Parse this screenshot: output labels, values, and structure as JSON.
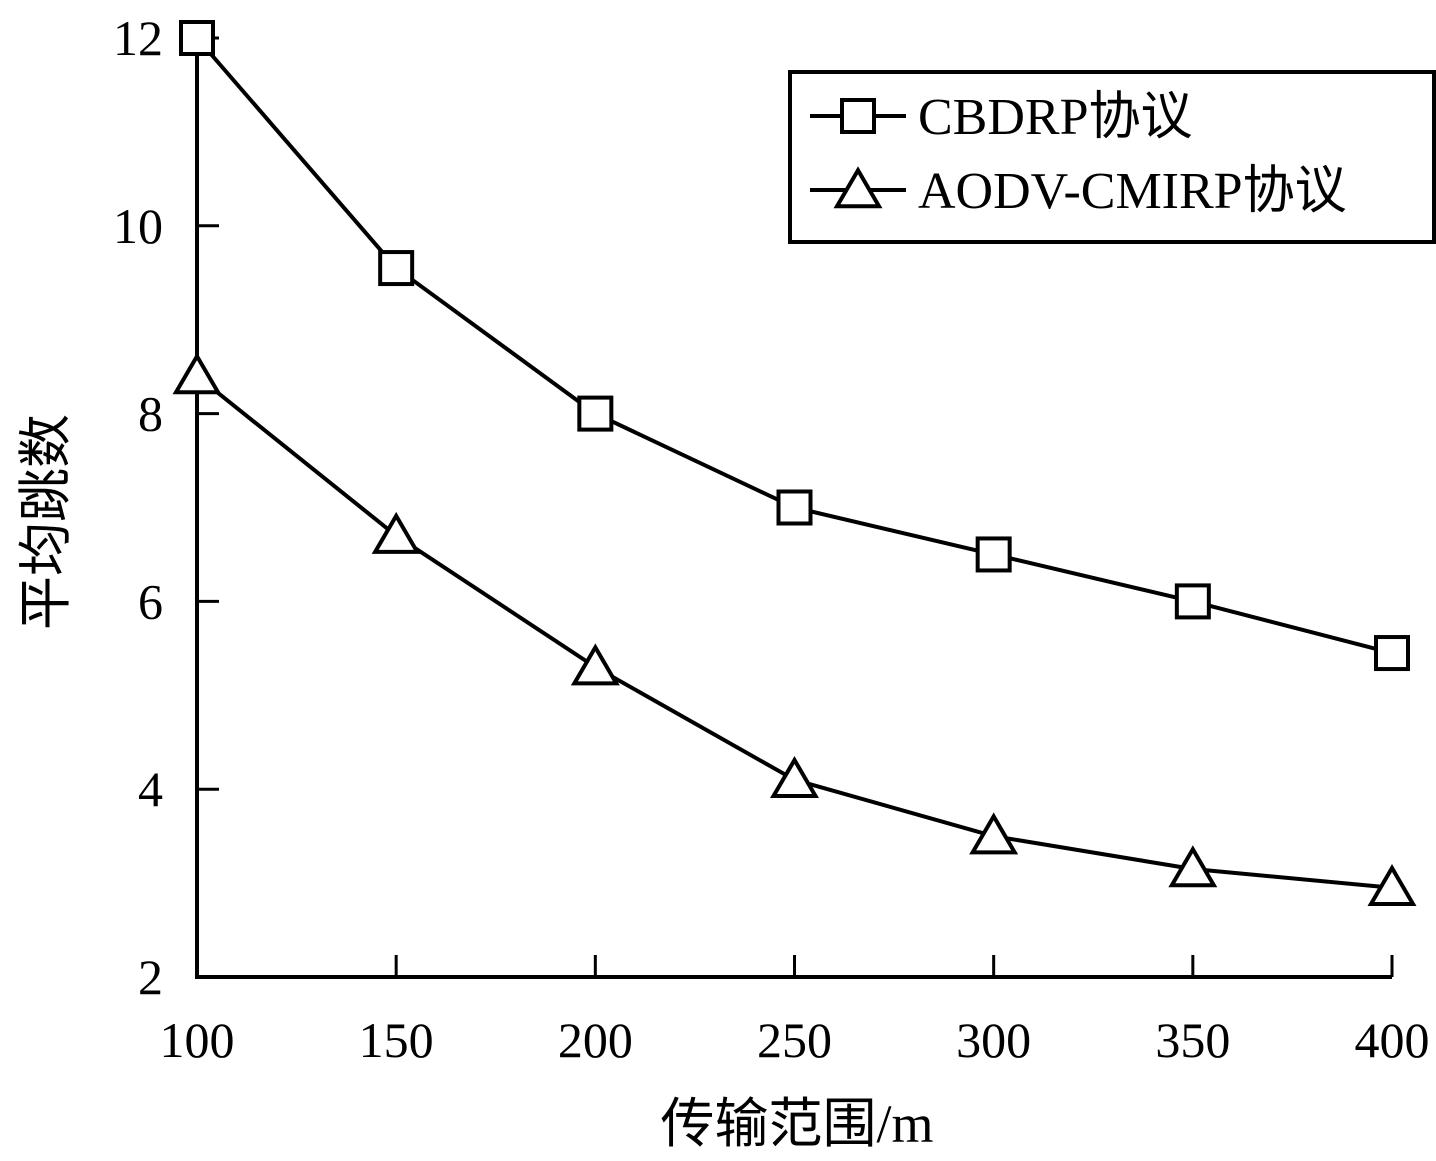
{
  "chart_data": {
    "type": "line",
    "xlabel": "传输范围/m",
    "ylabel": "平均跳数",
    "x": [
      100,
      150,
      200,
      250,
      300,
      350,
      400
    ],
    "xlim": [
      100,
      400
    ],
    "ylim": [
      2,
      12
    ],
    "xticks": [
      100,
      150,
      200,
      250,
      300,
      350,
      400
    ],
    "yticks": [
      2,
      4,
      6,
      8,
      10,
      12
    ],
    "grid": false,
    "legend_position": "top-right",
    "series": [
      {
        "name": "CBDRP协议",
        "marker": "square",
        "color": "#000000",
        "values": [
          12.0,
          9.55,
          8.0,
          7.0,
          6.5,
          6.0,
          5.45
        ]
      },
      {
        "name": "AODV-CMIRP协议",
        "marker": "triangle",
        "color": "#000000",
        "values": [
          8.4,
          6.7,
          5.3,
          4.1,
          3.5,
          3.15,
          2.95
        ]
      }
    ]
  }
}
